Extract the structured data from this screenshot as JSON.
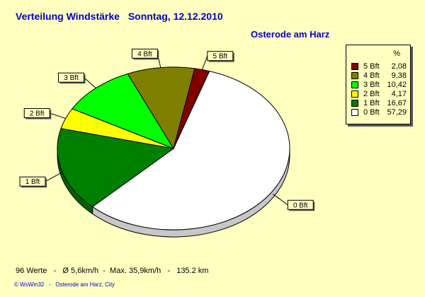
{
  "header": {
    "title": "Verteilung Windstärke",
    "date": "Sonntag, 12.12.2010",
    "location": "Osterode am Harz"
  },
  "legend": {
    "unit": "%",
    "items": [
      {
        "label": "5 Bft",
        "value": "2,08",
        "color": "#800000"
      },
      {
        "label": "4 Bft",
        "value": "9,38",
        "color": "#808000"
      },
      {
        "label": "3 Bft",
        "value": "10,42",
        "color": "#00ff00"
      },
      {
        "label": "2 Bft",
        "value": "4,17",
        "color": "#ffff00"
      },
      {
        "label": "1 Bft",
        "value": "16,67",
        "color": "#008000"
      },
      {
        "label": "0 Bft",
        "value": "57,29",
        "color": "#ffffff"
      }
    ]
  },
  "chart_data": {
    "type": "pie",
    "title": "Verteilung Windstärke  Sonntag, 12.12.2010",
    "subtitle": "Osterode am Harz",
    "unit": "%",
    "slices": [
      {
        "label": "0 Bft",
        "value": 57.29,
        "color": "#ffffff"
      },
      {
        "label": "1 Bft",
        "value": 16.67,
        "color": "#008000"
      },
      {
        "label": "2 Bft",
        "value": 4.17,
        "color": "#ffff00"
      },
      {
        "label": "3 Bft",
        "value": 10.42,
        "color": "#00ff00"
      },
      {
        "label": "4 Bft",
        "value": 9.38,
        "color": "#808000"
      },
      {
        "label": "5 Bft",
        "value": 2.08,
        "color": "#800000"
      }
    ],
    "legend_position": "right"
  },
  "footer": {
    "stats": "96 Werte   -   Ø 5,6km/h  -  Max. 35,9km/h   -   135.2 km",
    "credit": "© WsWin32   -   Osterode am Harz, City"
  },
  "colors": {
    "background": "#ffffc0",
    "title": "#0000cc"
  }
}
